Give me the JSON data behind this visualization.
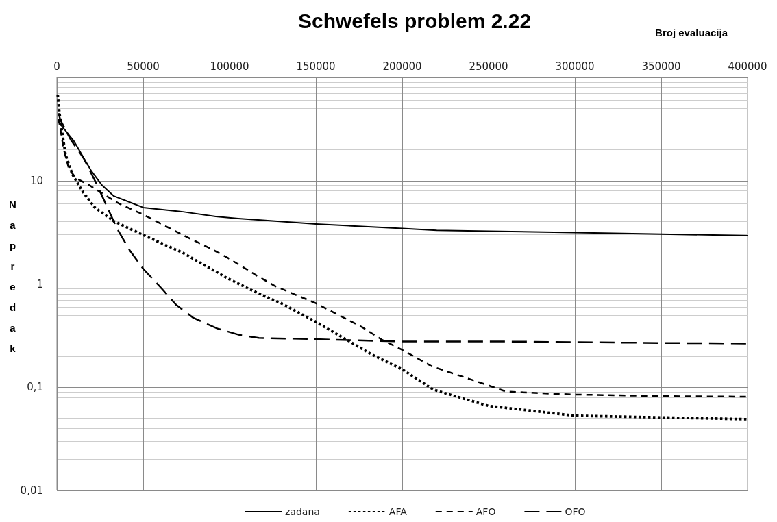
{
  "chart_data": {
    "type": "line",
    "title": "Schwefels problem 2.22",
    "xlabel": "Broj evaluacija",
    "ylabel": "Napredak",
    "xlim": [
      0,
      400000
    ],
    "xticks": [
      0,
      50000,
      100000,
      150000,
      200000,
      250000,
      300000,
      350000,
      400000
    ],
    "ylim": [
      0.01,
      100
    ],
    "yticks": [
      {
        "value": 0.01,
        "label": "0,01"
      },
      {
        "value": 0.1,
        "label": "0,1"
      },
      1,
      10
    ],
    "log": "y",
    "grid": true,
    "legend": "bottom",
    "marker": "none",
    "series": [
      {
        "name": "zadana",
        "color": "#000000",
        "line_style": "solid",
        "x": [
          1000,
          10000,
          20000,
          26000,
          33000,
          40000,
          50000,
          73000,
          92000,
          105000,
          118000,
          150000,
          200000,
          220000,
          250000,
          300000,
          350000,
          400000
        ],
        "values": [
          37,
          24,
          12.4,
          9.1,
          7.1,
          6.4,
          5.5,
          5.0,
          4.5,
          4.3,
          4.15,
          3.8,
          3.45,
          3.3,
          3.24,
          3.14,
          3.04,
          2.94
        ]
      },
      {
        "name": "AFA",
        "color": "#000000",
        "line_style": "dotted",
        "x": [
          500,
          1500,
          3000,
          5000,
          9000,
          15000,
          22000,
          33000,
          50000,
          73000,
          99000,
          116000,
          130000,
          150000,
          166000,
          183000,
          200000,
          218000,
          235000,
          250000,
          268000,
          300000,
          350000,
          400000
        ],
        "values": [
          68,
          45,
          30,
          18,
          11.5,
          7.8,
          5.5,
          4.05,
          2.98,
          2.0,
          1.13,
          0.82,
          0.65,
          0.43,
          0.3,
          0.205,
          0.149,
          0.095,
          0.078,
          0.066,
          0.061,
          0.053,
          0.051,
          0.049
        ]
      },
      {
        "name": "AFO",
        "color": "#000000",
        "line_style": "dashed",
        "x": [
          1000,
          4000,
          7000,
          11000,
          19000,
          27000,
          36000,
          50000,
          62000,
          75000,
          89000,
          99000,
          116000,
          126000,
          150000,
          177000,
          188000,
          200000,
          217000,
          230000,
          250000,
          260000,
          277000,
          300000,
          350000,
          400000
        ],
        "values": [
          40,
          20,
          13,
          10.6,
          9.0,
          7.4,
          6.0,
          4.7,
          3.7,
          2.86,
          2.2,
          1.79,
          1.2,
          0.96,
          0.65,
          0.38,
          0.29,
          0.23,
          0.16,
          0.135,
          0.104,
          0.091,
          0.088,
          0.085,
          0.082,
          0.081
        ]
      },
      {
        "name": "OFO",
        "color": "#000000",
        "line_style": "dashed",
        "x": [
          1000,
          2000,
          8000,
          15500,
          23000,
          35000,
          42000,
          50000,
          60000,
          69000,
          79000,
          93000,
          106000,
          117000,
          150000,
          200000,
          260000,
          350000,
          400000
        ],
        "values": [
          45,
          38.8,
          25,
          16.5,
          9.3,
          3.4,
          2.14,
          1.4,
          0.93,
          0.63,
          0.47,
          0.37,
          0.32,
          0.3,
          0.292,
          0.277,
          0.277,
          0.268,
          0.265
        ]
      }
    ]
  }
}
